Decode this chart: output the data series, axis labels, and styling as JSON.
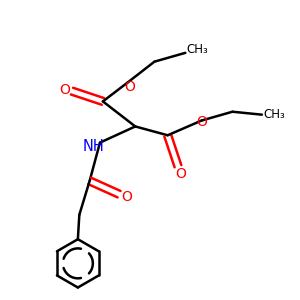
{
  "background_color": "#ffffff",
  "bond_color": "#000000",
  "oxygen_color": "#ff0000",
  "nitrogen_color": "#0000ff",
  "line_width": 1.8,
  "figsize": [
    3.0,
    3.0
  ],
  "dpi": 100,
  "xlim": [
    0,
    10
  ],
  "ylim": [
    0,
    10
  ]
}
